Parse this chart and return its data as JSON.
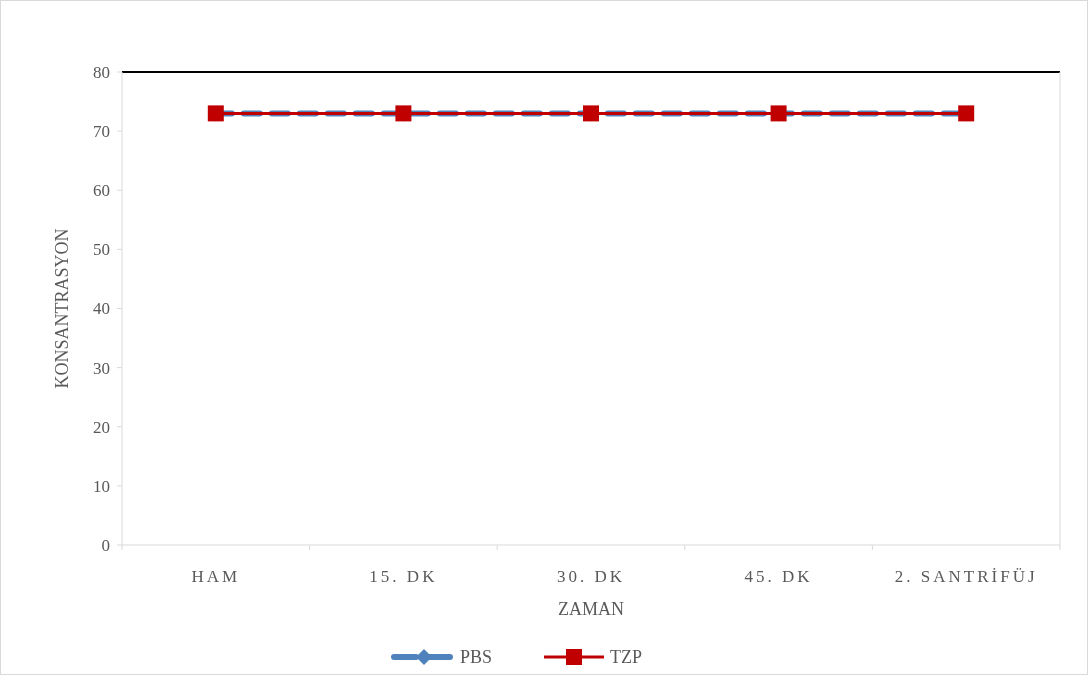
{
  "chart_data": {
    "type": "line",
    "xlabel": "ZAMAN",
    "ylabel": "KONSANTRASYON",
    "categories": [
      "HAM",
      "15. DK",
      "30. DK",
      "45. DK",
      "2. SANTRİFÜJ"
    ],
    "series": [
      {
        "name": "PBS",
        "color": "#4f81bd",
        "values": [
          73,
          73,
          73,
          73,
          73
        ],
        "marker": "diamond",
        "line_style": "dashed"
      },
      {
        "name": "TZP",
        "color": "#c00000",
        "values": [
          73,
          73,
          73,
          73,
          73
        ],
        "marker": "square",
        "line_style": "solid"
      }
    ],
    "ylim": [
      0,
      80
    ],
    "yticks": [
      0,
      10,
      20,
      30,
      40,
      50,
      60,
      70,
      80
    ],
    "grid": false,
    "legend": "bottom"
  }
}
